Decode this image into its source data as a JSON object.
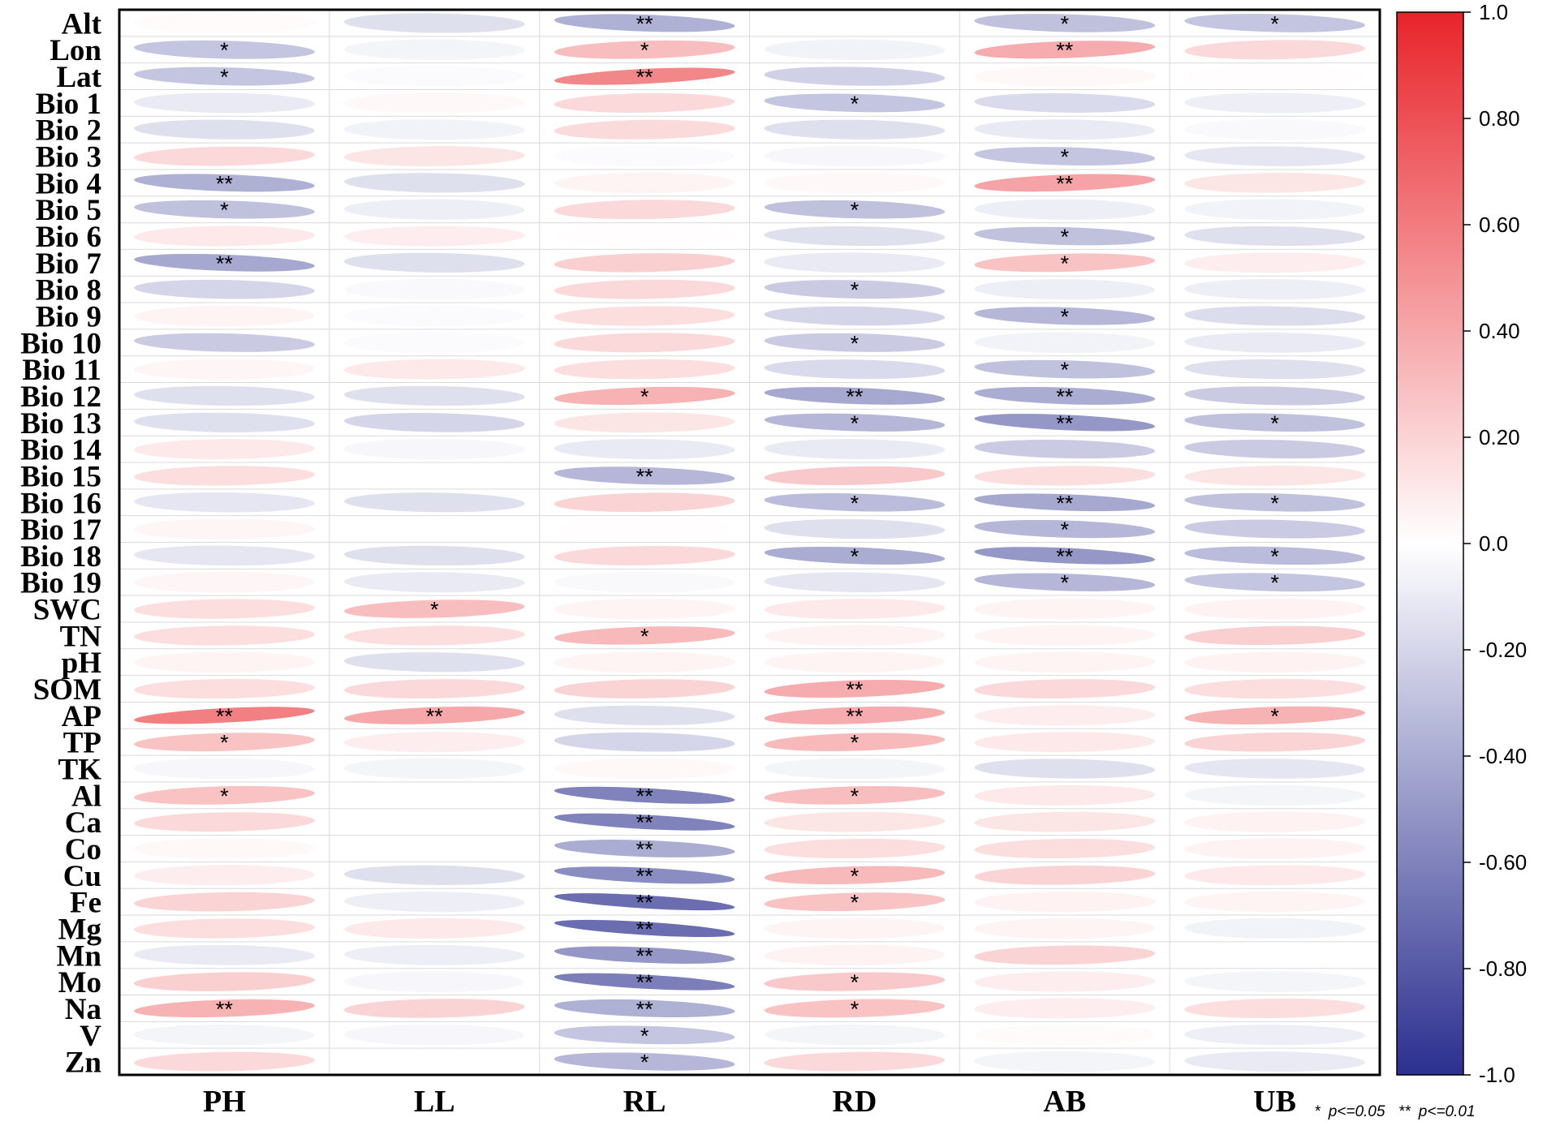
{
  "chart_data": {
    "type": "heatmap",
    "glyph": "ellipse",
    "rows": [
      "Alt",
      "Lon",
      "Lat",
      "Bio 1",
      "Bio 2",
      "Bio 3",
      "Bio 4",
      "Bio 5",
      "Bio 6",
      "Bio 7",
      "Bio 8",
      "Bio 9",
      "Bio 10",
      "Bio 11",
      "Bio 12",
      "Bio 13",
      "Bio 14",
      "Bio 15",
      "Bio 16",
      "Bio 17",
      "Bio 18",
      "Bio 19",
      "SWC",
      "TN",
      "pH",
      "SOM",
      "AP",
      "TP",
      "TK",
      "Al",
      "Ca",
      "Co",
      "Cu",
      "Fe",
      "Mg",
      "Mn",
      "Mo",
      "Na",
      "V",
      "Zn"
    ],
    "columns": [
      "PH",
      "LL",
      "RL",
      "RD",
      "AB",
      "UB"
    ],
    "values": [
      [
        0.02,
        -0.15,
        -0.38,
        0.0,
        -0.3,
        -0.28
      ],
      [
        -0.28,
        -0.05,
        0.3,
        -0.06,
        0.38,
        0.18
      ],
      [
        -0.28,
        -0.02,
        0.55,
        -0.22,
        0.03,
        0.01
      ],
      [
        -0.1,
        0.03,
        0.18,
        -0.28,
        -0.18,
        -0.08
      ],
      [
        -0.15,
        -0.06,
        0.17,
        -0.15,
        -0.1,
        -0.03
      ],
      [
        0.18,
        0.12,
        -0.02,
        -0.04,
        -0.28,
        -0.12
      ],
      [
        -0.38,
        -0.15,
        0.05,
        0.03,
        0.42,
        0.12
      ],
      [
        -0.3,
        -0.08,
        0.18,
        -0.3,
        -0.08,
        -0.06
      ],
      [
        0.1,
        0.08,
        0.01,
        -0.15,
        -0.3,
        -0.15
      ],
      [
        -0.42,
        -0.15,
        0.22,
        -0.1,
        0.28,
        0.08
      ],
      [
        -0.2,
        -0.03,
        0.18,
        -0.25,
        -0.08,
        -0.08
      ],
      [
        0.05,
        -0.02,
        0.15,
        -0.2,
        -0.35,
        -0.17
      ],
      [
        -0.25,
        -0.02,
        0.18,
        -0.25,
        -0.06,
        -0.1
      ],
      [
        0.04,
        0.1,
        0.15,
        -0.18,
        -0.3,
        -0.15
      ],
      [
        -0.15,
        -0.15,
        0.35,
        -0.42,
        -0.4,
        -0.25
      ],
      [
        -0.15,
        -0.2,
        0.12,
        -0.35,
        -0.5,
        -0.3
      ],
      [
        0.1,
        -0.04,
        -0.1,
        -0.1,
        -0.25,
        -0.25
      ],
      [
        0.15,
        0.0,
        -0.35,
        0.25,
        0.15,
        0.12
      ],
      [
        -0.12,
        -0.15,
        0.2,
        -0.32,
        -0.42,
        -0.3
      ],
      [
        0.04,
        0.0,
        0.01,
        -0.15,
        -0.35,
        -0.25
      ],
      [
        -0.12,
        -0.15,
        0.18,
        -0.4,
        -0.5,
        -0.32
      ],
      [
        0.04,
        -0.1,
        -0.03,
        -0.12,
        -0.35,
        -0.28
      ],
      [
        0.15,
        0.3,
        0.05,
        0.1,
        0.05,
        0.06
      ],
      [
        0.15,
        0.15,
        0.32,
        0.06,
        0.05,
        0.22
      ],
      [
        0.05,
        -0.15,
        0.05,
        0.05,
        0.05,
        0.06
      ],
      [
        0.15,
        0.18,
        0.2,
        0.38,
        0.18,
        0.15
      ],
      [
        0.58,
        0.4,
        -0.15,
        0.38,
        0.08,
        0.35
      ],
      [
        0.28,
        0.08,
        -0.2,
        0.32,
        0.1,
        0.2
      ],
      [
        -0.04,
        -0.05,
        0.03,
        -0.05,
        -0.15,
        -0.12
      ],
      [
        0.28,
        0.0,
        -0.6,
        0.3,
        0.1,
        -0.05
      ],
      [
        0.18,
        0.0,
        -0.6,
        0.12,
        0.12,
        0.06
      ],
      [
        0.03,
        0.0,
        -0.4,
        0.15,
        0.15,
        0.06
      ],
      [
        0.08,
        -0.15,
        -0.55,
        0.32,
        0.2,
        0.1
      ],
      [
        0.2,
        -0.08,
        -0.7,
        0.28,
        0.06,
        0.05
      ],
      [
        0.15,
        0.1,
        -0.7,
        0.05,
        0.05,
        -0.06
      ],
      [
        -0.1,
        -0.08,
        -0.5,
        0.06,
        0.2,
        0.0
      ],
      [
        0.22,
        -0.04,
        -0.62,
        0.25,
        0.08,
        -0.05
      ],
      [
        0.35,
        0.2,
        -0.38,
        0.28,
        0.08,
        0.15
      ],
      [
        -0.05,
        -0.04,
        -0.28,
        -0.05,
        0.02,
        -0.08
      ],
      [
        0.18,
        0.0,
        -0.35,
        0.18,
        -0.05,
        -0.1
      ]
    ],
    "significance": [
      [
        "",
        "",
        "**",
        "",
        "*",
        "*"
      ],
      [
        "*",
        "",
        "*",
        "",
        "**",
        ""
      ],
      [
        "*",
        "",
        "**",
        "",
        "",
        ""
      ],
      [
        "",
        "",
        "",
        "*",
        "",
        ""
      ],
      [
        "",
        "",
        "",
        "",
        "",
        ""
      ],
      [
        "",
        "",
        "",
        "",
        "*",
        ""
      ],
      [
        "**",
        "",
        "",
        "",
        "**",
        ""
      ],
      [
        "*",
        "",
        "",
        "*",
        "",
        ""
      ],
      [
        "",
        "",
        "",
        "",
        "*",
        ""
      ],
      [
        "**",
        "",
        "",
        "",
        "*",
        ""
      ],
      [
        "",
        "",
        "",
        "*",
        "",
        ""
      ],
      [
        "",
        "",
        "",
        "",
        "*",
        ""
      ],
      [
        "",
        "",
        "",
        "*",
        "",
        ""
      ],
      [
        "",
        "",
        "",
        "",
        "*",
        ""
      ],
      [
        "",
        "",
        "*",
        "**",
        "**",
        ""
      ],
      [
        "",
        "",
        "",
        "*",
        "**",
        "*"
      ],
      [
        "",
        "",
        "",
        "",
        "",
        ""
      ],
      [
        "",
        "",
        "**",
        "",
        "",
        ""
      ],
      [
        "",
        "",
        "",
        "*",
        "**",
        "*"
      ],
      [
        "",
        "",
        "",
        "",
        "*",
        ""
      ],
      [
        "",
        "",
        "",
        "*",
        "**",
        "*"
      ],
      [
        "",
        "",
        "",
        "",
        "*",
        "*"
      ],
      [
        "",
        "*",
        "",
        "",
        "",
        ""
      ],
      [
        "",
        "",
        "*",
        "",
        "",
        ""
      ],
      [
        "",
        "",
        "",
        "",
        "",
        ""
      ],
      [
        "",
        "",
        "",
        "**",
        "",
        ""
      ],
      [
        "**",
        "**",
        "",
        "**",
        "",
        "*"
      ],
      [
        "*",
        "",
        "",
        "*",
        "",
        ""
      ],
      [
        "",
        "",
        "",
        "",
        "",
        ""
      ],
      [
        "*",
        "",
        "**",
        "*",
        "",
        ""
      ],
      [
        "",
        "",
        "**",
        "",
        "",
        ""
      ],
      [
        "",
        "",
        "**",
        "",
        "",
        ""
      ],
      [
        "",
        "",
        "**",
        "*",
        "",
        ""
      ],
      [
        "",
        "",
        "**",
        "*",
        "",
        ""
      ],
      [
        "",
        "",
        "**",
        "",
        "",
        ""
      ],
      [
        "",
        "",
        "**",
        "",
        "",
        ""
      ],
      [
        "",
        "",
        "**",
        "*",
        "",
        ""
      ],
      [
        "**",
        "",
        "**",
        "*",
        "",
        ""
      ],
      [
        "",
        "",
        "*",
        "",
        "",
        ""
      ],
      [
        "",
        "",
        "*",
        "",
        "",
        ""
      ]
    ],
    "colorbar": {
      "range": [
        -1.0,
        1.0
      ],
      "ticks": [
        "1.0",
        "0.80",
        "0.60",
        "0.40",
        "0.20",
        "0.0",
        "-0.20",
        "-0.40",
        "-0.60",
        "-0.80",
        "-1.0"
      ],
      "low_color": "#2b2f8f",
      "mid_color": "#ffffff",
      "high_color": "#e8242a"
    },
    "legend_note": {
      "single_marker": "*",
      "single_text": "p<=0.05",
      "double_marker": "**",
      "double_text": "p<=0.01"
    }
  }
}
